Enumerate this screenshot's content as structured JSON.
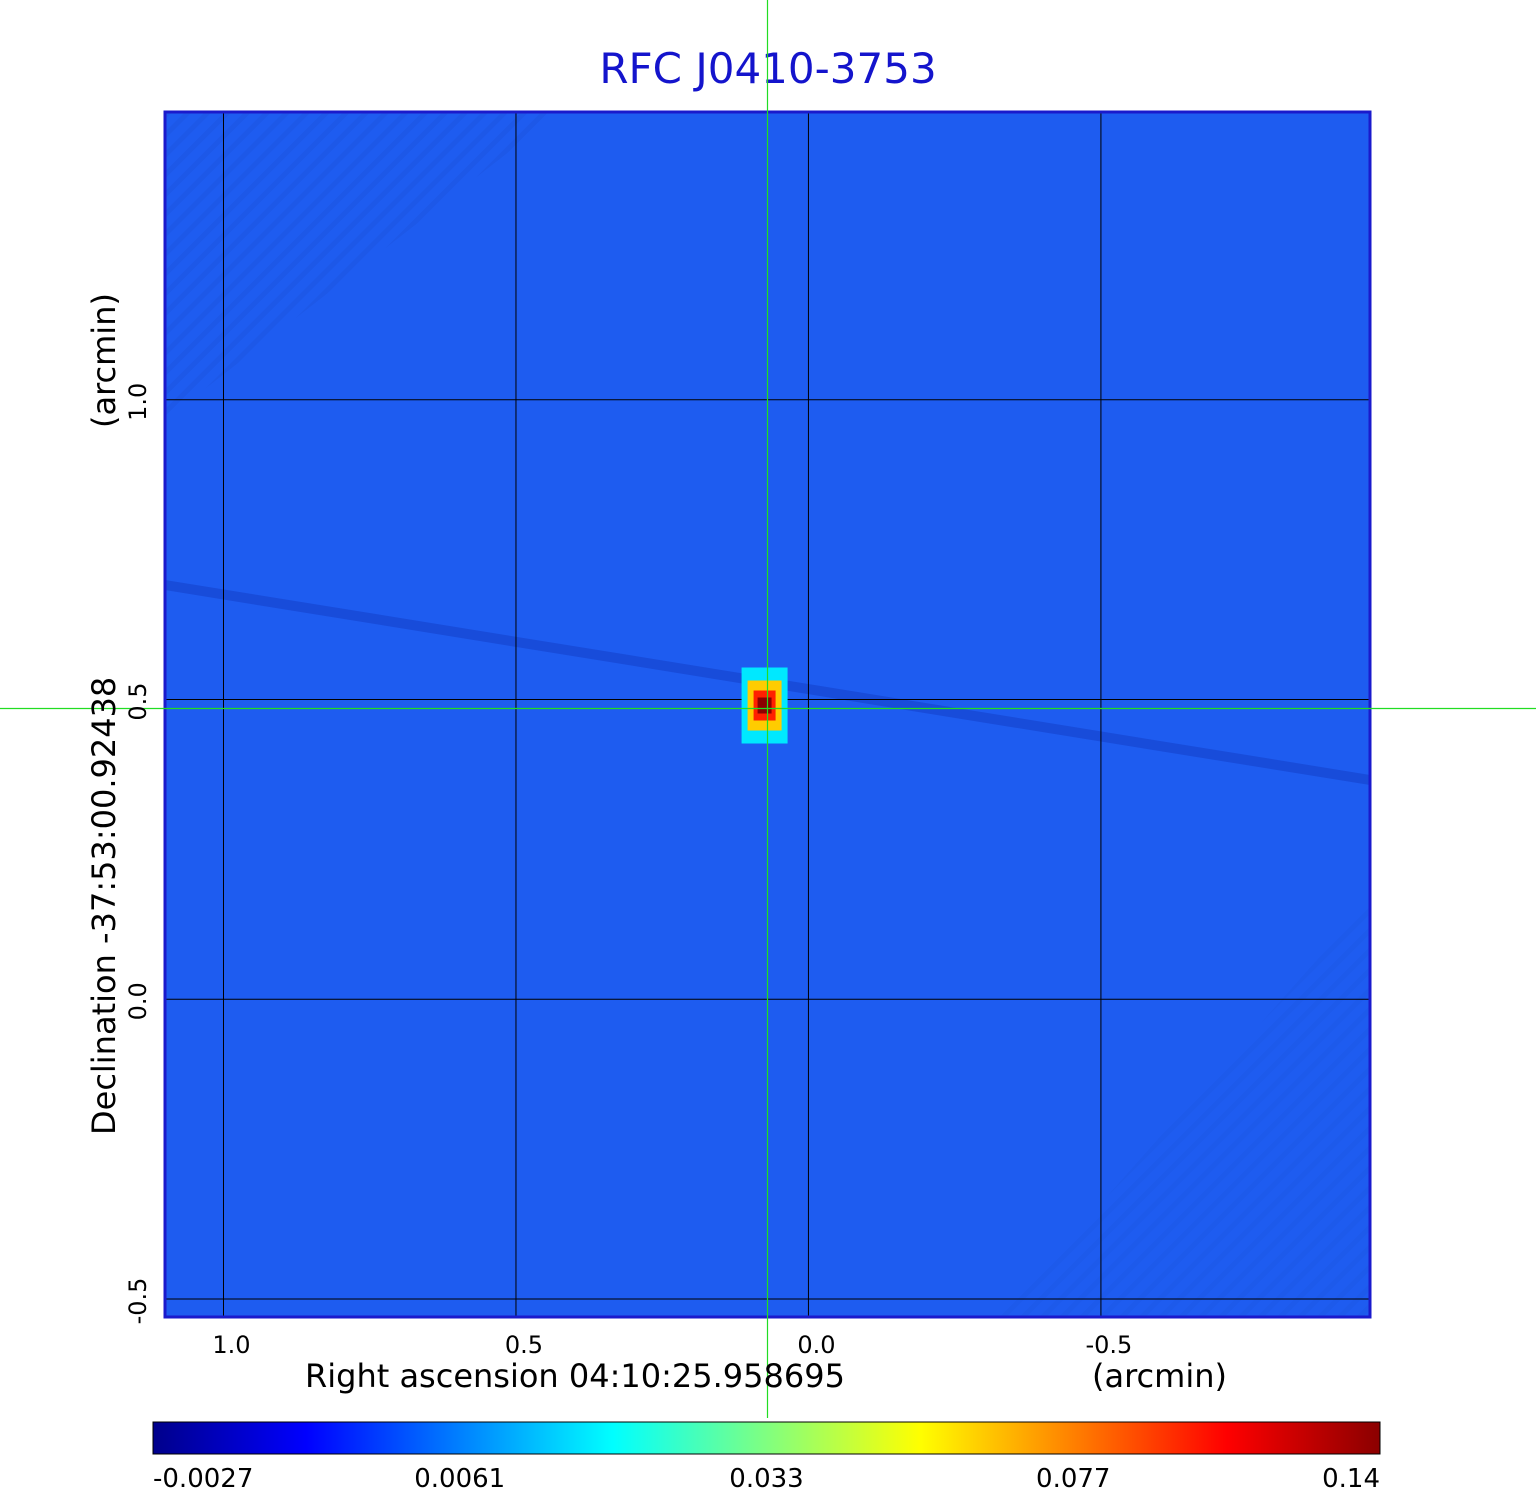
{
  "chart_data": {
    "type": "heatmap",
    "title": "RFC J0410-3753",
    "xlabel": "Right ascension  04:10:25.958695",
    "xunit": "(arcmin)",
    "ylabel": "Declination  -37:53:00.92438",
    "yunit": "(arcmin)",
    "xlim": [
      1.1,
      -0.96
    ],
    "ylim": [
      -0.53,
      1.48
    ],
    "x_ticks": [
      {
        "value": 1.0,
        "label": "1.0"
      },
      {
        "value": 0.5,
        "label": "0.5"
      },
      {
        "value": 0.0,
        "label": "0.0"
      },
      {
        "value": -0.5,
        "label": "-0.5"
      }
    ],
    "y_ticks": [
      {
        "value": -0.5,
        "label": "-0.5"
      },
      {
        "value": 0.0,
        "label": "0.0"
      },
      {
        "value": 0.5,
        "label": "0.5"
      },
      {
        "value": 1.0,
        "label": "1.0"
      }
    ],
    "grid": true,
    "crosshair": {
      "x": 0.07,
      "y": 0.485
    },
    "peak": {
      "x": 0.075,
      "y": 0.49,
      "value": 0.14
    },
    "colorbar": {
      "ticks": [
        "-0.0027",
        "0.0061",
        "0.033",
        "0.077",
        "0.14"
      ],
      "colors": [
        "#00008b",
        "#0000ff",
        "#0080ff",
        "#00ffff",
        "#80ff80",
        "#ffff00",
        "#ff8000",
        "#ff0000",
        "#8b0000"
      ]
    },
    "background_color": "#1e5cf0",
    "frame_color": "#1a1acc",
    "crosshair_color": "#22dd22"
  }
}
